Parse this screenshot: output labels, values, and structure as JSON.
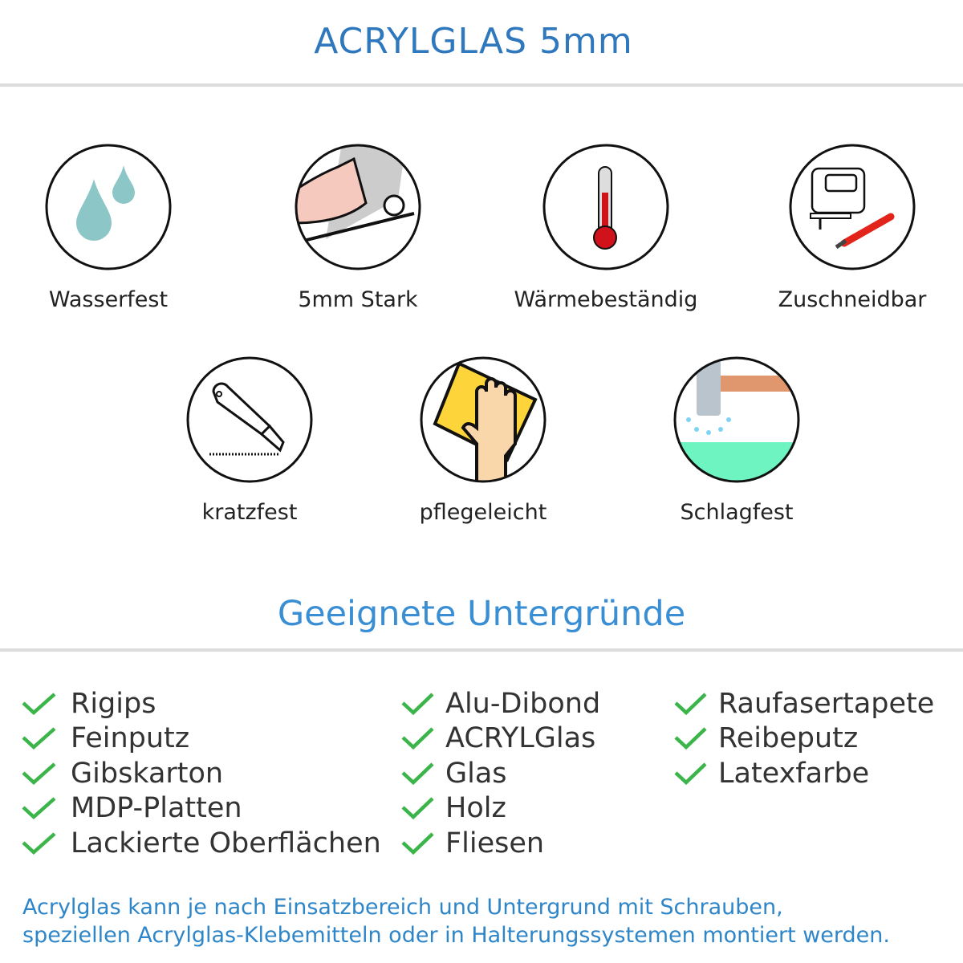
{
  "header": {
    "title": "ACRYLGLAS 5mm"
  },
  "features": [
    {
      "label": "Wasserfest",
      "icon": "water-drops-icon"
    },
    {
      "label": "5mm Stark",
      "icon": "muscle-arm-icon"
    },
    {
      "label": "Wärmebeständig",
      "icon": "thermometer-icon"
    },
    {
      "label": "Zuschneidbar",
      "icon": "jigsaw-cutter-icon"
    },
    {
      "label": "kratzfest",
      "icon": "utility-knife-icon"
    },
    {
      "label": "pflegeleicht",
      "icon": "hand-cloth-icon"
    },
    {
      "label": "Schlagfest",
      "icon": "hammer-icon"
    }
  ],
  "surfaces": {
    "title": "Geeignete Untergründe",
    "columns": [
      [
        "Rigips",
        "Feinputz",
        "Gibskarton",
        "MDP-Platten",
        "Lackierte Oberflächen"
      ],
      [
        "Alu-Dibond",
        "ACRYLGlas",
        "Glas",
        "Holz",
        "Fliesen"
      ],
      [
        "Raufasertapete",
        "Reibeputz",
        "Latexfarbe"
      ]
    ],
    "check_color": "#3bb54a"
  },
  "footer": {
    "lines": [
      "Acrylglas kann je nach Einsatzbereich und Untergrund mit Schrauben,",
      "speziellen Acrylglas-Klebemitteln oder in Halterungssystemen montiert werden."
    ]
  },
  "colors": {
    "title": "#2f78bd",
    "subtitle": "#3a8fd4",
    "footer": "#2e86c8"
  }
}
